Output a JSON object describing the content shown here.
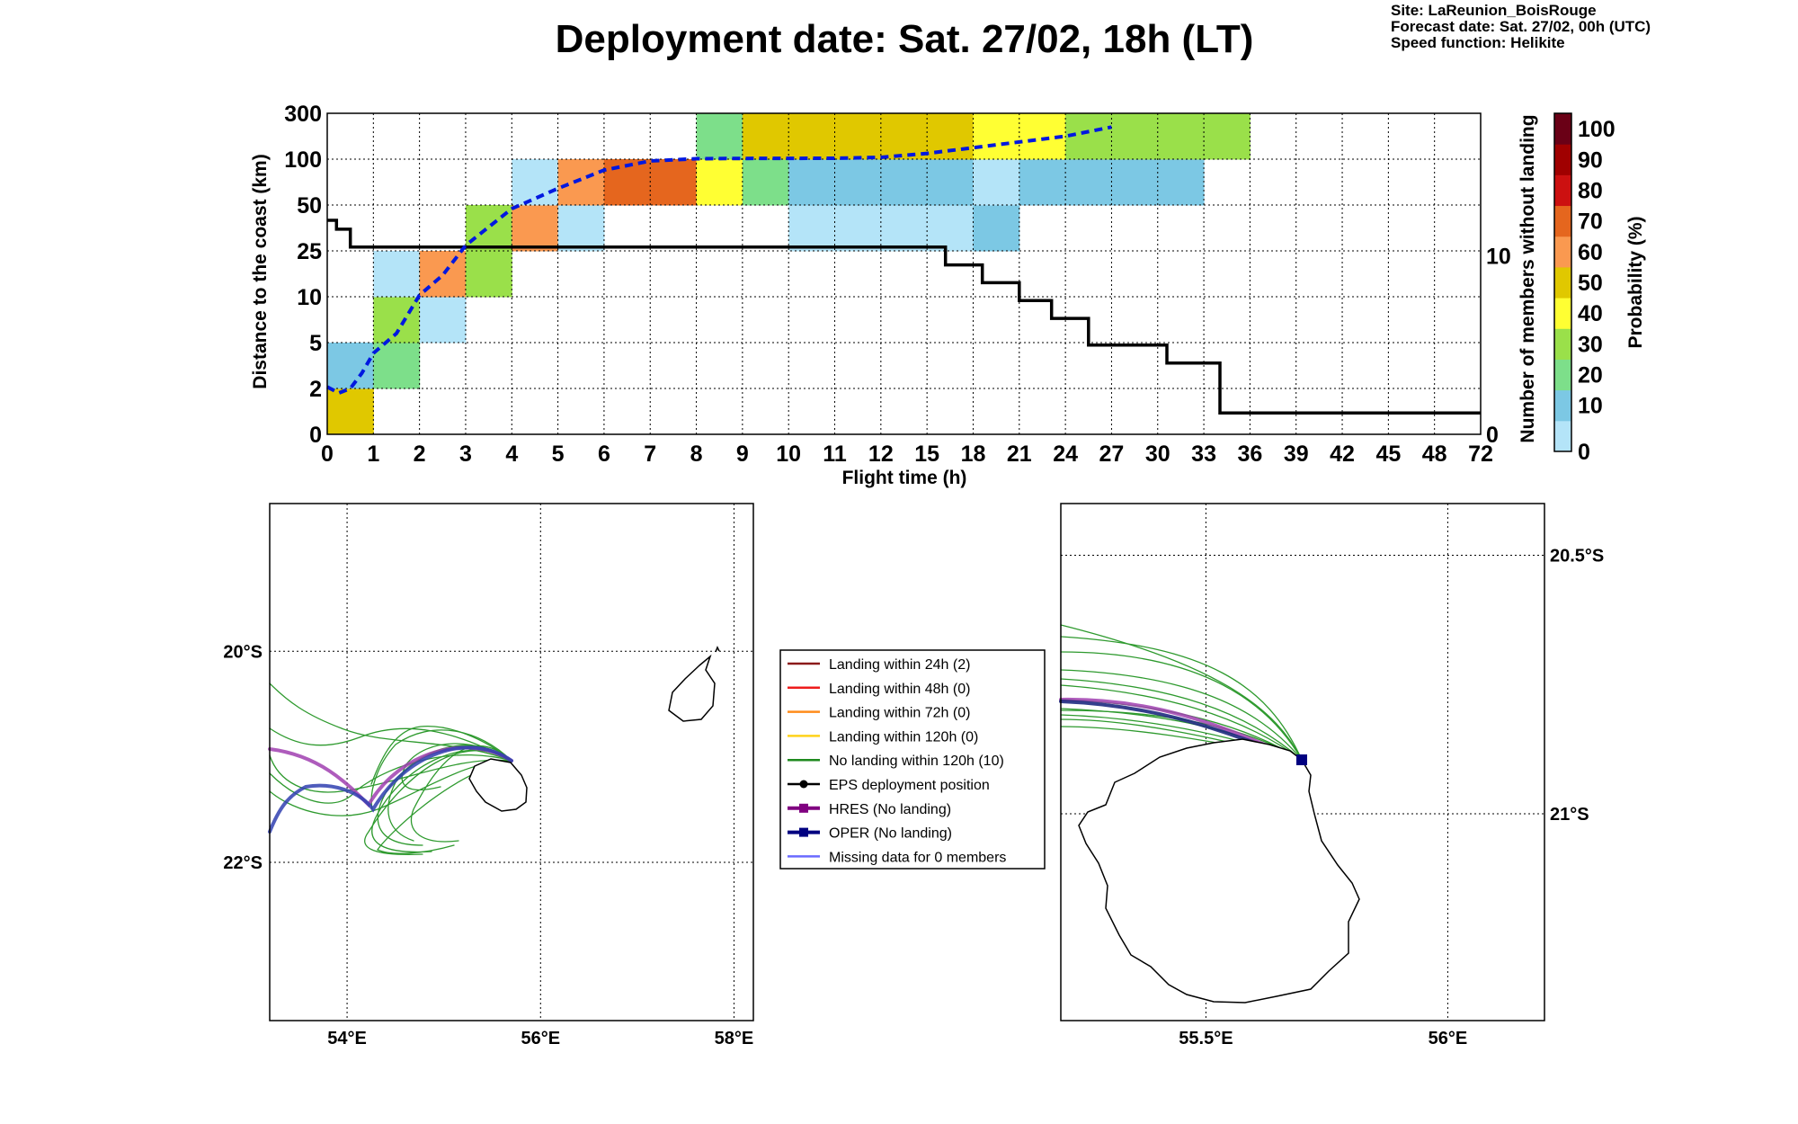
{
  "header": {
    "title": "Deployment date: Sat. 27/02, 18h (LT)",
    "site": "Site: LaReunion_BoisRouge",
    "forecast": "Forecast date: Sat. 27/02, 00h (UTC)",
    "speed": "Speed function: Helikite"
  },
  "chart_data": [
    {
      "type": "heatmap",
      "xlabel": "Flight time (h)",
      "ylabel": "Distance to the coast (km)",
      "y2label": "Number of members without landing",
      "colorbar_label": "Probability (%)",
      "x_ticks": [
        "0",
        "1",
        "2",
        "3",
        "4",
        "5",
        "6",
        "7",
        "8",
        "9",
        "10",
        "11",
        "12",
        "15",
        "18",
        "21",
        "24",
        "27",
        "30",
        "33",
        "36",
        "39",
        "42",
        "45",
        "48",
        "72"
      ],
      "y_ticks": [
        "0",
        "2",
        "5",
        "10",
        "25",
        "50",
        "100",
        "300"
      ],
      "y2_ticks": [
        "0",
        "10"
      ],
      "y2_range": [
        0,
        18
      ],
      "colorbar_ticks": [
        "0",
        "10",
        "20",
        "30",
        "40",
        "50",
        "60",
        "70",
        "80",
        "90",
        "100"
      ],
      "colorbar_colors": [
        "#b4e4f8",
        "#7cc8e4",
        "#7ddf8a",
        "#9ae04a",
        "#ffff33",
        "#e0c800",
        "#fa9950",
        "#e5661e",
        "#cc1010",
        "#a00000",
        "#6a0016"
      ],
      "cells": [
        {
          "x": 0,
          "y": 0,
          "p": 50
        },
        {
          "x": 0,
          "y": 1,
          "p": 10
        },
        {
          "x": 1,
          "y": 1,
          "p": 20
        },
        {
          "x": 1,
          "y": 2,
          "p": 30
        },
        {
          "x": 1,
          "y": 3,
          "p": 0
        },
        {
          "x": 2,
          "y": 2,
          "p": 0
        },
        {
          "x": 2,
          "y": 3,
          "p": 60
        },
        {
          "x": 3,
          "y": 3,
          "p": 30
        },
        {
          "x": 3,
          "y": 4,
          "p": 30
        },
        {
          "x": 4,
          "y": 4,
          "p": 60
        },
        {
          "x": 4,
          "y": 5,
          "p": 0
        },
        {
          "x": 5,
          "y": 4,
          "p": 0
        },
        {
          "x": 5,
          "y": 5,
          "p": 60
        },
        {
          "x": 6,
          "y": 5,
          "p": 70
        },
        {
          "x": 7,
          "y": 5,
          "p": 70
        },
        {
          "x": 8,
          "y": 5,
          "p": 40
        },
        {
          "x": 8,
          "y": 6,
          "p": 20
        },
        {
          "x": 9,
          "y": 5,
          "p": 20
        },
        {
          "x": 9,
          "y": 6,
          "p": 50
        },
        {
          "x": 10,
          "y": 4,
          "p": 0
        },
        {
          "x": 10,
          "y": 5,
          "p": 10
        },
        {
          "x": 10,
          "y": 6,
          "p": 50
        },
        {
          "x": 11,
          "y": 4,
          "p": 0
        },
        {
          "x": 11,
          "y": 5,
          "p": 10
        },
        {
          "x": 11,
          "y": 6,
          "p": 50
        },
        {
          "x": 12,
          "y": 4,
          "p": 0
        },
        {
          "x": 12,
          "y": 5,
          "p": 10
        },
        {
          "x": 12,
          "y": 6,
          "p": 50
        },
        {
          "x": 13,
          "y": 4,
          "p": 0
        },
        {
          "x": 13,
          "y": 5,
          "p": 10
        },
        {
          "x": 13,
          "y": 6,
          "p": 50
        },
        {
          "x": 14,
          "y": 4,
          "p": 10
        },
        {
          "x": 14,
          "y": 5,
          "p": 0
        },
        {
          "x": 14,
          "y": 6,
          "p": 40
        },
        {
          "x": 15,
          "y": 5,
          "p": 10
        },
        {
          "x": 15,
          "y": 6,
          "p": 40
        },
        {
          "x": 16,
          "y": 5,
          "p": 10
        },
        {
          "x": 16,
          "y": 6,
          "p": 30
        },
        {
          "x": 17,
          "y": 5,
          "p": 10
        },
        {
          "x": 17,
          "y": 6,
          "p": 30
        },
        {
          "x": 18,
          "y": 5,
          "p": 10
        },
        {
          "x": 18,
          "y": 6,
          "p": 30
        },
        {
          "x": 19,
          "y": 6,
          "p": 30
        }
      ],
      "median_distance": [
        [
          0,
          2.1
        ],
        [
          0.25,
          1.8
        ],
        [
          0.5,
          2
        ],
        [
          0.75,
          3
        ],
        [
          1,
          4.3
        ],
        [
          1.5,
          6
        ],
        [
          2,
          10.5
        ],
        [
          2.5,
          17
        ],
        [
          3,
          28
        ],
        [
          3.5,
          38
        ],
        [
          4,
          48
        ],
        [
          5,
          68
        ],
        [
          6,
          88
        ],
        [
          7,
          98
        ],
        [
          8,
          102
        ],
        [
          9,
          103
        ],
        [
          10,
          103.5
        ],
        [
          11,
          104
        ],
        [
          12,
          108
        ],
        [
          13,
          125
        ],
        [
          14,
          150
        ],
        [
          15,
          175
        ],
        [
          16,
          200
        ],
        [
          17,
          240
        ]
      ],
      "members_without_landing": [
        [
          0,
          12
        ],
        [
          0.2,
          12
        ],
        [
          0.2,
          11.5
        ],
        [
          0.5,
          11.5
        ],
        [
          0.5,
          10.5
        ],
        [
          13.4,
          10.5
        ],
        [
          13.4,
          9.5
        ],
        [
          14.2,
          9.5
        ],
        [
          14.2,
          8.5
        ],
        [
          15,
          8.5
        ],
        [
          15,
          7.5
        ],
        [
          15.7,
          7.5
        ],
        [
          15.7,
          6.5
        ],
        [
          16.5,
          6.5
        ],
        [
          16.5,
          5
        ],
        [
          18.2,
          5
        ],
        [
          18.2,
          4
        ],
        [
          19.35,
          4
        ],
        [
          19.35,
          1.2
        ],
        [
          25,
          1.2
        ]
      ]
    },
    {
      "type": "map",
      "lon_ticks": [
        "54°E",
        "56°E",
        "58°E"
      ],
      "lat_ticks": [
        "20°S",
        "22°S"
      ],
      "lon_range": [
        53.2,
        58.2
      ],
      "lat_range": [
        -23.5,
        -18.6
      ]
    },
    {
      "type": "map",
      "lon_ticks": [
        "55.5°E",
        "56°E"
      ],
      "lat_ticks": [
        "20.5°S",
        "21°S"
      ],
      "lon_range": [
        55.2,
        56.2
      ],
      "lat_range": [
        -21.4,
        -20.4
      ]
    }
  ],
  "legend": [
    {
      "label": "Landing within 24h (2)",
      "color": "#8b1a1a",
      "marker": "none"
    },
    {
      "label": "Landing within 48h (0)",
      "color": "#ee1c1c",
      "marker": "none"
    },
    {
      "label": "Landing within 72h (0)",
      "color": "#ff8c1a",
      "marker": "none"
    },
    {
      "label": "Landing within 120h (0)",
      "color": "#ffd21a",
      "marker": "none"
    },
    {
      "label": "No landing within 120h (10)",
      "color": "#1f8a1f",
      "marker": "none"
    },
    {
      "label": "EPS deployment position",
      "color": "#000000",
      "marker": "circle"
    },
    {
      "label": "HRES (No landing)",
      "color": "#800080",
      "marker": "square"
    },
    {
      "label": "OPER (No landing)",
      "color": "#000080",
      "marker": "square"
    },
    {
      "label": "Missing data for 0 members",
      "color": "#6a6aff",
      "marker": "none"
    }
  ]
}
